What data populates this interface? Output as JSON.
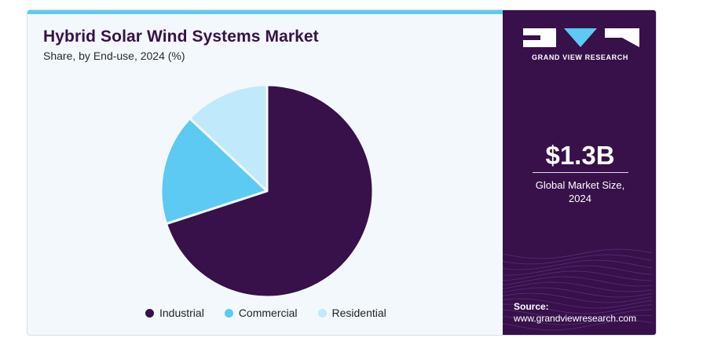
{
  "title": "Hybrid Solar Wind Systems Market",
  "subtitle": "Share, by End-use, 2024 (%)",
  "brand": {
    "name": "GRAND VIEW RESEARCH"
  },
  "kpi": {
    "value": "$1.3B",
    "label_line1": "Global Market Size,",
    "label_line2": "2024"
  },
  "source": {
    "label": "Source:",
    "url": "www.grandviewresearch.com"
  },
  "colors": {
    "industrial": "#38104a",
    "commercial": "#5ccaf3",
    "residential": "#c0e9fb",
    "accent": "#5ccaf3",
    "panel": "#38104a"
  },
  "chart_data": {
    "type": "pie",
    "title": "Hybrid Solar Wind Systems Market",
    "subtitle": "Share, by End-use, 2024 (%)",
    "categories": [
      "Industrial",
      "Commercial",
      "Residential"
    ],
    "values": [
      70,
      17,
      13
    ],
    "legend_position": "bottom",
    "start_angle_deg": 0,
    "direction": "clockwise"
  }
}
